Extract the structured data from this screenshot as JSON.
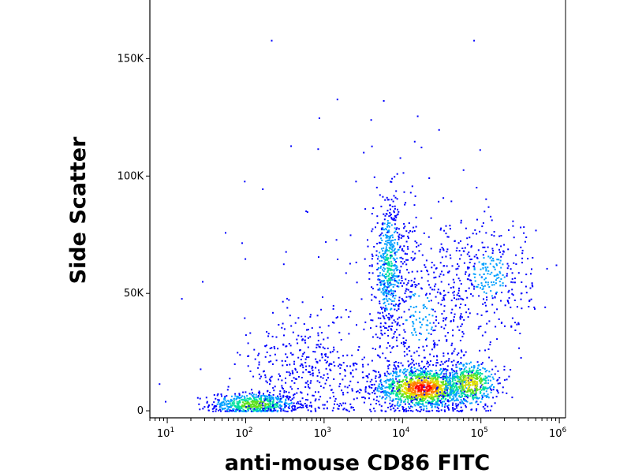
{
  "chart_data": {
    "type": "scatter",
    "title": "",
    "xlabel": "anti-mouse CD86 FITC",
    "ylabel": "Side Scatter",
    "x_scale": "log",
    "xlim": [
      6,
      1200000
    ],
    "ylim": [
      -3000,
      175000
    ],
    "x_ticks": [
      {
        "value": 10,
        "base": "10",
        "exp": "1"
      },
      {
        "value": 100,
        "base": "10",
        "exp": "2"
      },
      {
        "value": 1000,
        "base": "10",
        "exp": "3"
      },
      {
        "value": 10000,
        "base": "10",
        "exp": "4"
      },
      {
        "value": 100000,
        "base": "10",
        "exp": "5"
      },
      {
        "value": 1000000,
        "base": "10",
        "exp": "6"
      }
    ],
    "y_ticks": [
      {
        "value": 0,
        "label": "0"
      },
      {
        "value": 50000,
        "label": "50K"
      },
      {
        "value": 100000,
        "label": "100K"
      },
      {
        "value": 150000,
        "label": "150K"
      }
    ],
    "density_colormap": [
      "#0000ff",
      "#00a0ff",
      "#00e0a0",
      "#60e020",
      "#e0e000",
      "#ff8000",
      "#ff0000"
    ],
    "populations": [
      {
        "name": "",
        "log10x_center": 2.1,
        "log10x_sd": 0.28,
        "y_center": 3000,
        "y_sd": 2500,
        "weight": 0.14,
        "peak_density": 0.55
      },
      {
        "name": "",
        "log10x_center": 4.25,
        "log10x_sd": 0.3,
        "y_center": 10000,
        "y_sd": 4500,
        "weight": 0.3,
        "peak_density": 1.0
      },
      {
        "name": "",
        "log10x_center": 4.85,
        "log10x_sd": 0.18,
        "y_center": 12000,
        "y_sd": 5000,
        "weight": 0.12,
        "peak_density": 0.7
      },
      {
        "name": "",
        "log10x_center": 3.82,
        "log10x_sd": 0.1,
        "y_center": 62000,
        "y_sd": 14000,
        "weight": 0.12,
        "peak_density": 0.3
      },
      {
        "name": "",
        "log10x_center": 4.2,
        "log10x_sd": 0.35,
        "y_center": 40000,
        "y_sd": 20000,
        "weight": 0.12,
        "peak_density": 0.1
      },
      {
        "name": "",
        "log10x_center": 5.1,
        "log10x_sd": 0.28,
        "y_center": 58000,
        "y_sd": 12000,
        "weight": 0.08,
        "peak_density": 0.12
      },
      {
        "name": "",
        "log10x_center": 2.8,
        "log10x_sd": 0.45,
        "y_center": 15000,
        "y_sd": 12000,
        "weight": 0.1,
        "peak_density": 0.05
      },
      {
        "name": "",
        "log10x_center": 3.5,
        "log10x_sd": 1.0,
        "y_center": 50000,
        "y_sd": 45000,
        "weight": 0.02,
        "peak_density": 0.02
      }
    ],
    "outliers": [
      {
        "x": 210,
        "y": 158000
      },
      {
        "x": 80000,
        "y": 158000
      },
      {
        "x": 850,
        "y": 125000
      },
      {
        "x": 95,
        "y": 98000
      },
      {
        "x": 2500,
        "y": 98000
      },
      {
        "x": 15,
        "y": 48000
      },
      {
        "x": 320,
        "y": 68000
      },
      {
        "x": 600,
        "y": 85000
      },
      {
        "x": 14000,
        "y": 115000
      },
      {
        "x": 300000,
        "y": 27000
      }
    ],
    "grid": false,
    "legend": "none"
  }
}
